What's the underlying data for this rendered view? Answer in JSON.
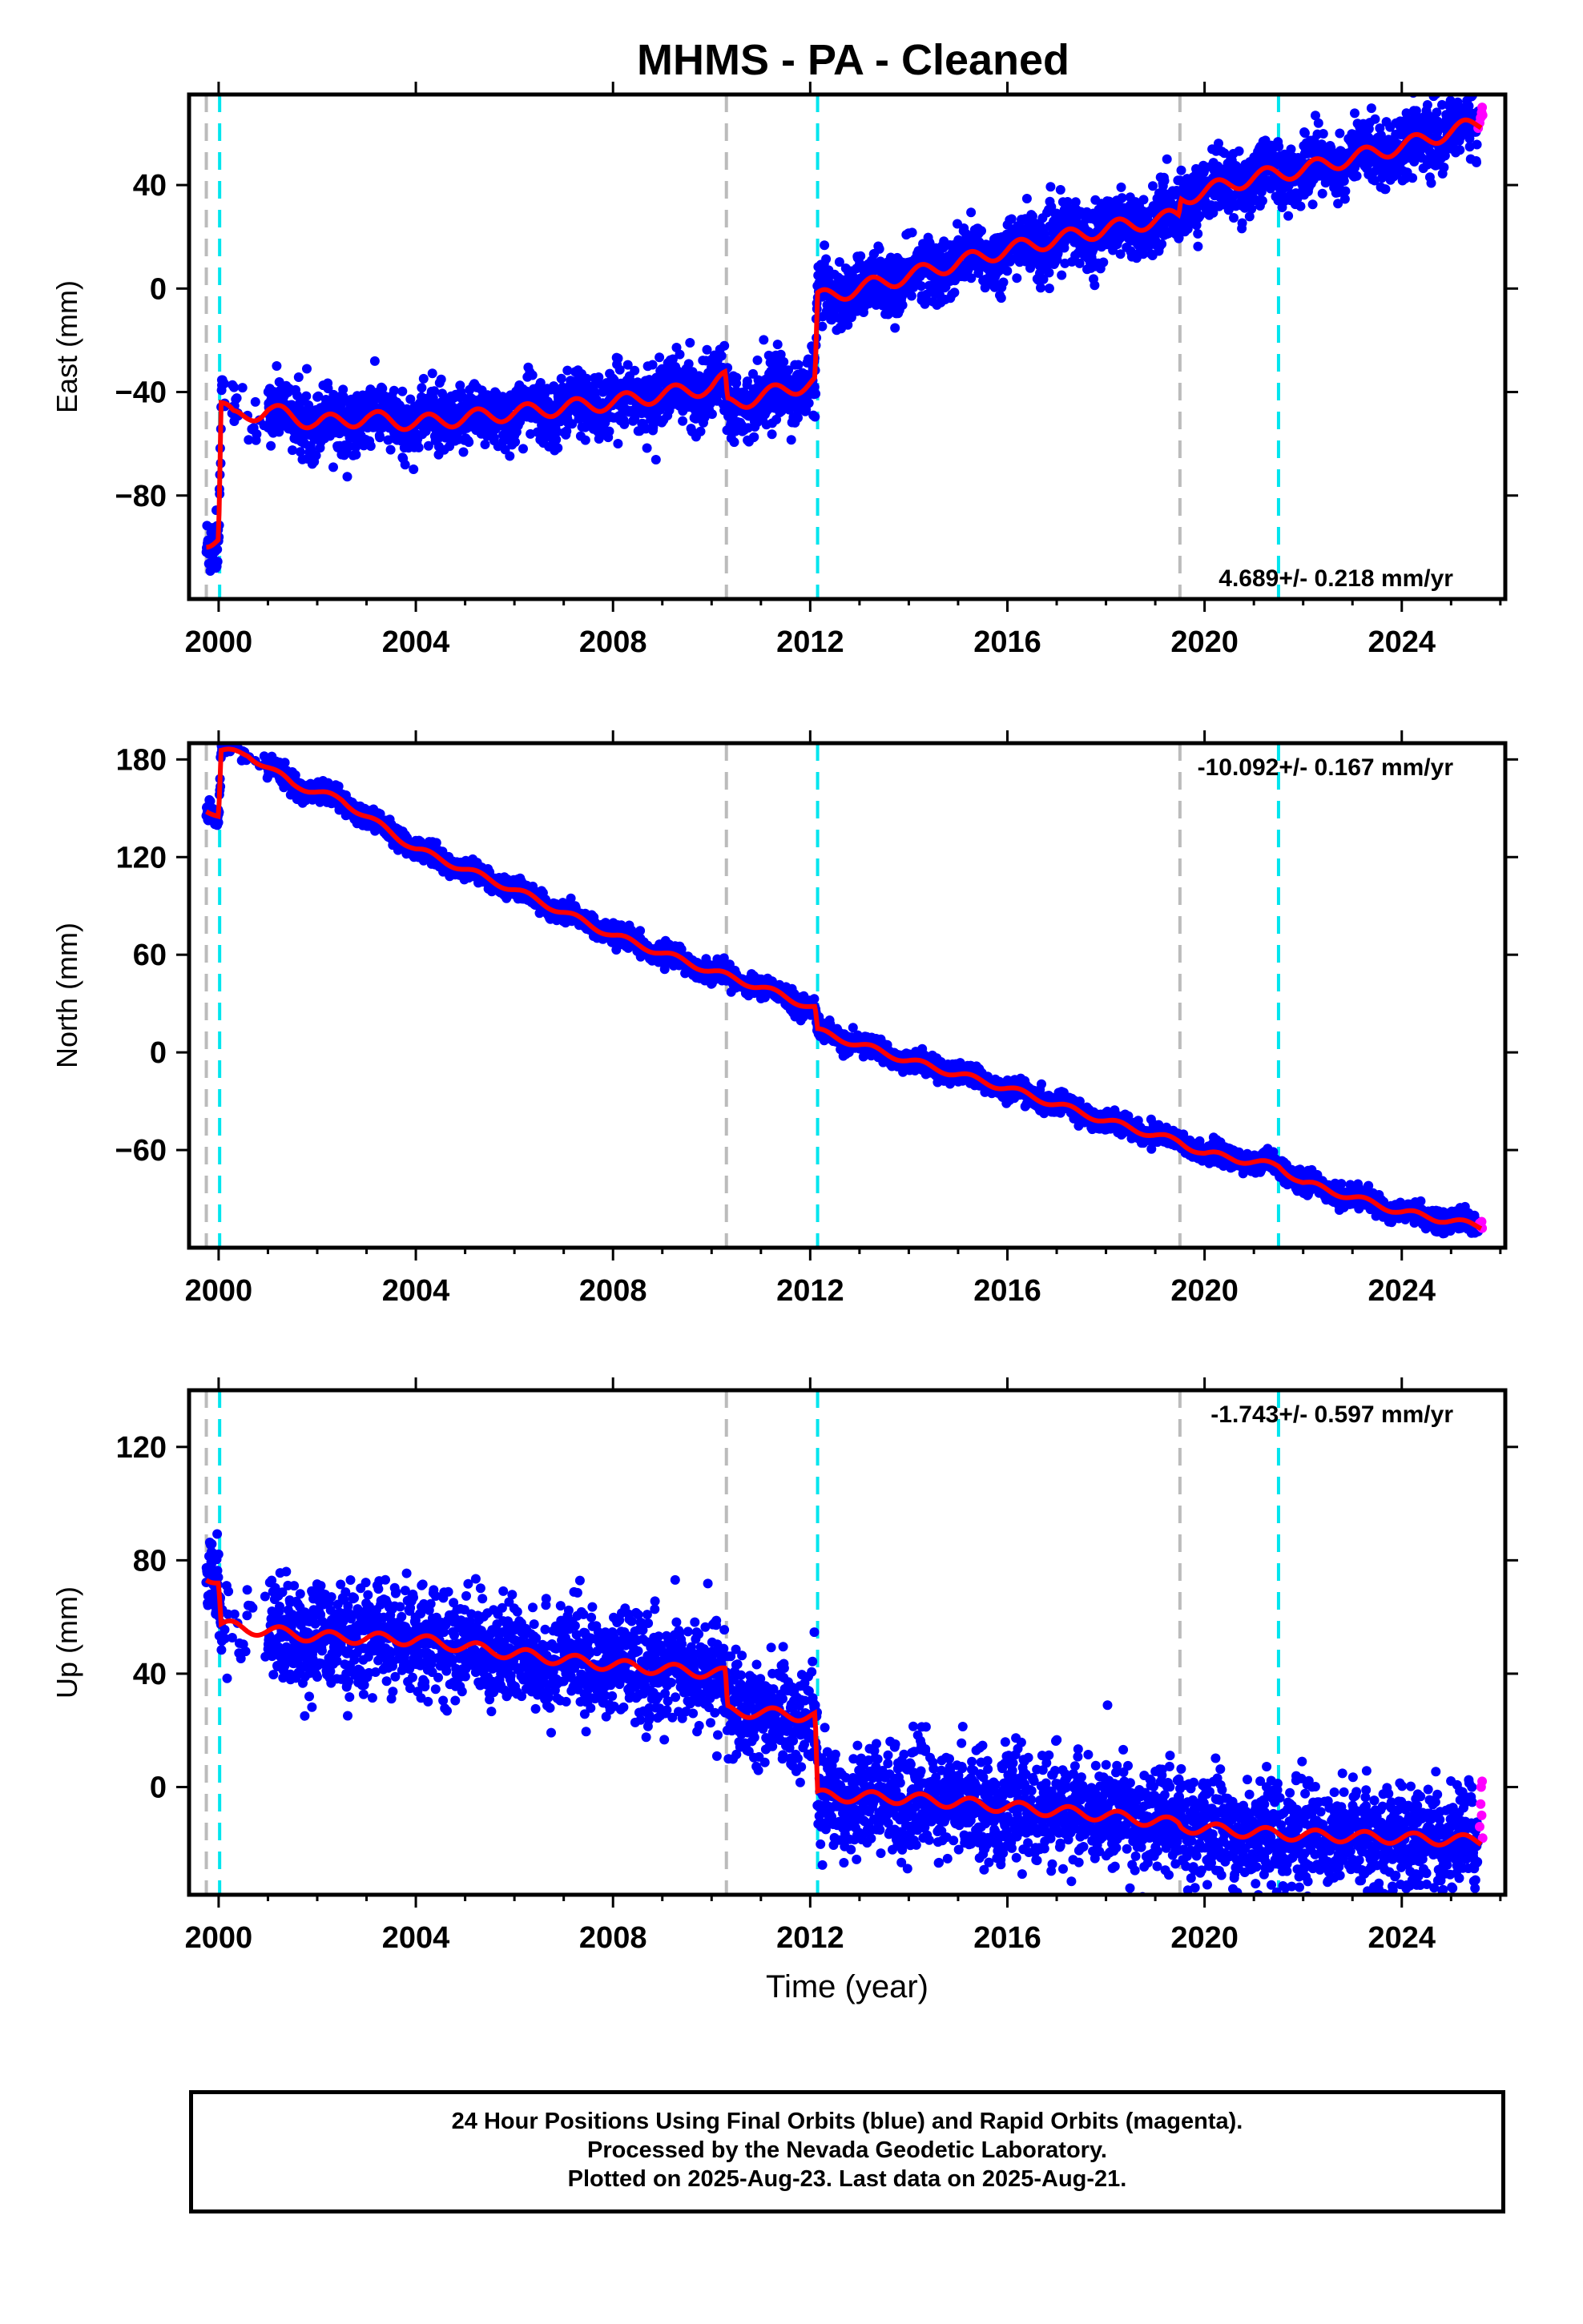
{
  "title": "MHMS  - PA - Cleaned",
  "footer": {
    "line1": "24 Hour Positions Using Final Orbits (blue) and Rapid Orbits (magenta).",
    "line2": "Processed by the Nevada Geodetic Laboratory.",
    "line3": "Plotted on 2025-Aug-23. Last data on 2025-Aug-21."
  },
  "colors": {
    "final": "#0000ff",
    "rapid": "#ff00ff",
    "model": "#ff0000",
    "gray_line": "#bbbbbb",
    "cyan_line": "#00e5ee"
  },
  "chart_data": [
    {
      "type": "scatter",
      "component": "East",
      "ylabel": "East (mm)",
      "xlabel": "",
      "xlim": [
        1999.4,
        2026.1
      ],
      "ylim": [
        -120,
        75
      ],
      "xticks": [
        2000,
        2004,
        2008,
        2012,
        2016,
        2020,
        2024
      ],
      "xtick_labels": [
        "2000",
        "2004",
        "2008",
        "2012",
        "2016",
        "2020",
        "2024"
      ],
      "yticks": [
        -80,
        -40,
        0,
        40
      ],
      "ytick_labels": [
        "−80",
        "−40",
        "0",
        "40"
      ],
      "rate": "4.689+/- 0.218 mm/yr",
      "rate_position": "bottom-right",
      "gray_dashed_lines": [
        1999.75,
        2010.3,
        2019.5
      ],
      "cyan_dashed_lines": [
        2000.02,
        2012.15,
        2021.5
      ],
      "model_knots": [
        [
          1999.75,
          -97
        ],
        [
          2000.0,
          -97
        ],
        [
          2000.05,
          -45
        ],
        [
          2000.3,
          -50
        ],
        [
          2001.0,
          -47
        ],
        [
          2002.0,
          -52
        ],
        [
          2003.0,
          -50
        ],
        [
          2004.0,
          -52
        ],
        [
          2006.0,
          -48
        ],
        [
          2008.0,
          -44
        ],
        [
          2010.0,
          -38
        ],
        [
          2010.28,
          -35
        ],
        [
          2010.32,
          -45
        ],
        [
          2012.1,
          -36
        ],
        [
          2012.15,
          -4
        ],
        [
          2014.0,
          5
        ],
        [
          2016.0,
          15
        ],
        [
          2018.0,
          23
        ],
        [
          2019.48,
          28
        ],
        [
          2019.52,
          35
        ],
        [
          2021.0,
          43
        ],
        [
          2022.0,
          46
        ],
        [
          2024.0,
          55
        ],
        [
          2025.6,
          64
        ]
      ],
      "seasonal_amplitude_mm": 3,
      "scatter_sigma_mm": 6,
      "rapid_points": [
        [
          2025.55,
          62
        ],
        [
          2025.58,
          64
        ],
        [
          2025.6,
          66
        ],
        [
          2025.62,
          68
        ],
        [
          2025.63,
          70
        ],
        [
          2025.64,
          67
        ]
      ]
    },
    {
      "type": "scatter",
      "component": "North",
      "ylabel": "North (mm)",
      "xlabel": "",
      "xlim": [
        1999.4,
        2026.1
      ],
      "ylim": [
        -120,
        190
      ],
      "xticks": [
        2000,
        2004,
        2008,
        2012,
        2016,
        2020,
        2024
      ],
      "xtick_labels": [
        "2000",
        "2004",
        "2008",
        "2012",
        "2016",
        "2020",
        "2024"
      ],
      "yticks": [
        -60,
        0,
        60,
        120,
        180
      ],
      "ytick_labels": [
        "−60",
        "0",
        "60",
        "120",
        "180"
      ],
      "rate": "-10.092+/- 0.167 mm/yr",
      "rate_position": "top-right",
      "gray_dashed_lines": [
        1999.75,
        2010.3,
        2019.5
      ],
      "cyan_dashed_lines": [
        2000.02,
        2012.15,
        2021.5
      ],
      "model_knots": [
        [
          1999.75,
          150
        ],
        [
          2000.0,
          145
        ],
        [
          2000.05,
          185
        ],
        [
          2000.6,
          183
        ],
        [
          2001.5,
          165
        ],
        [
          2002.5,
          155
        ],
        [
          2003.5,
          135
        ],
        [
          2004.0,
          125
        ],
        [
          2006.0,
          100
        ],
        [
          2008.0,
          72
        ],
        [
          2010.0,
          50
        ],
        [
          2011.0,
          40
        ],
        [
          2012.1,
          27
        ],
        [
          2012.15,
          13
        ],
        [
          2014.0,
          -5
        ],
        [
          2016.0,
          -22
        ],
        [
          2018.0,
          -42
        ],
        [
          2019.48,
          -55
        ],
        [
          2020.0,
          -62
        ],
        [
          2021.5,
          -70
        ],
        [
          2022.0,
          -80
        ],
        [
          2024.0,
          -98
        ],
        [
          2025.6,
          -107
        ]
      ],
      "seasonal_amplitude_mm": 2,
      "scatter_sigma_mm": 3,
      "rapid_points": [
        [
          2025.58,
          -105
        ],
        [
          2025.6,
          -107
        ],
        [
          2025.62,
          -104
        ],
        [
          2025.63,
          -108
        ]
      ]
    },
    {
      "type": "scatter",
      "component": "Up",
      "ylabel": "Up (mm)",
      "xlabel": "Time (year)",
      "xlim": [
        1999.4,
        2026.1
      ],
      "ylim": [
        -38,
        140
      ],
      "xticks": [
        2000,
        2004,
        2008,
        2012,
        2016,
        2020,
        2024
      ],
      "xtick_labels": [
        "2000",
        "2004",
        "2008",
        "2012",
        "2016",
        "2020",
        "2024"
      ],
      "yticks": [
        0,
        40,
        80,
        120
      ],
      "ytick_labels": [
        "0",
        "40",
        "80",
        "120"
      ],
      "rate": "-1.743+/- 0.597 mm/yr",
      "rate_position": "top-right",
      "gray_dashed_lines": [
        1999.75,
        2010.3,
        2019.5
      ],
      "cyan_dashed_lines": [
        2000.02,
        2012.15,
        2021.5
      ],
      "model_knots": [
        [
          1999.75,
          75
        ],
        [
          2000.0,
          72
        ],
        [
          2000.05,
          57
        ],
        [
          2002.0,
          53
        ],
        [
          2004.0,
          52
        ],
        [
          2006.0,
          47
        ],
        [
          2008.0,
          43
        ],
        [
          2010.28,
          40
        ],
        [
          2010.32,
          27
        ],
        [
          2012.1,
          25
        ],
        [
          2012.15,
          -3
        ],
        [
          2014.0,
          -4
        ],
        [
          2016.0,
          -7
        ],
        [
          2018.0,
          -10
        ],
        [
          2019.48,
          -13
        ],
        [
          2019.52,
          -14
        ],
        [
          2021.0,
          -16
        ],
        [
          2022.0,
          -17
        ],
        [
          2024.0,
          -18
        ],
        [
          2025.6,
          -19
        ]
      ],
      "seasonal_amplitude_mm": 2,
      "scatter_sigma_mm": 9,
      "rapid_points": [
        [
          2025.58,
          -14
        ],
        [
          2025.6,
          -6
        ],
        [
          2025.61,
          0
        ],
        [
          2025.62,
          -10
        ],
        [
          2025.63,
          2
        ],
        [
          2025.64,
          -18
        ]
      ]
    }
  ]
}
